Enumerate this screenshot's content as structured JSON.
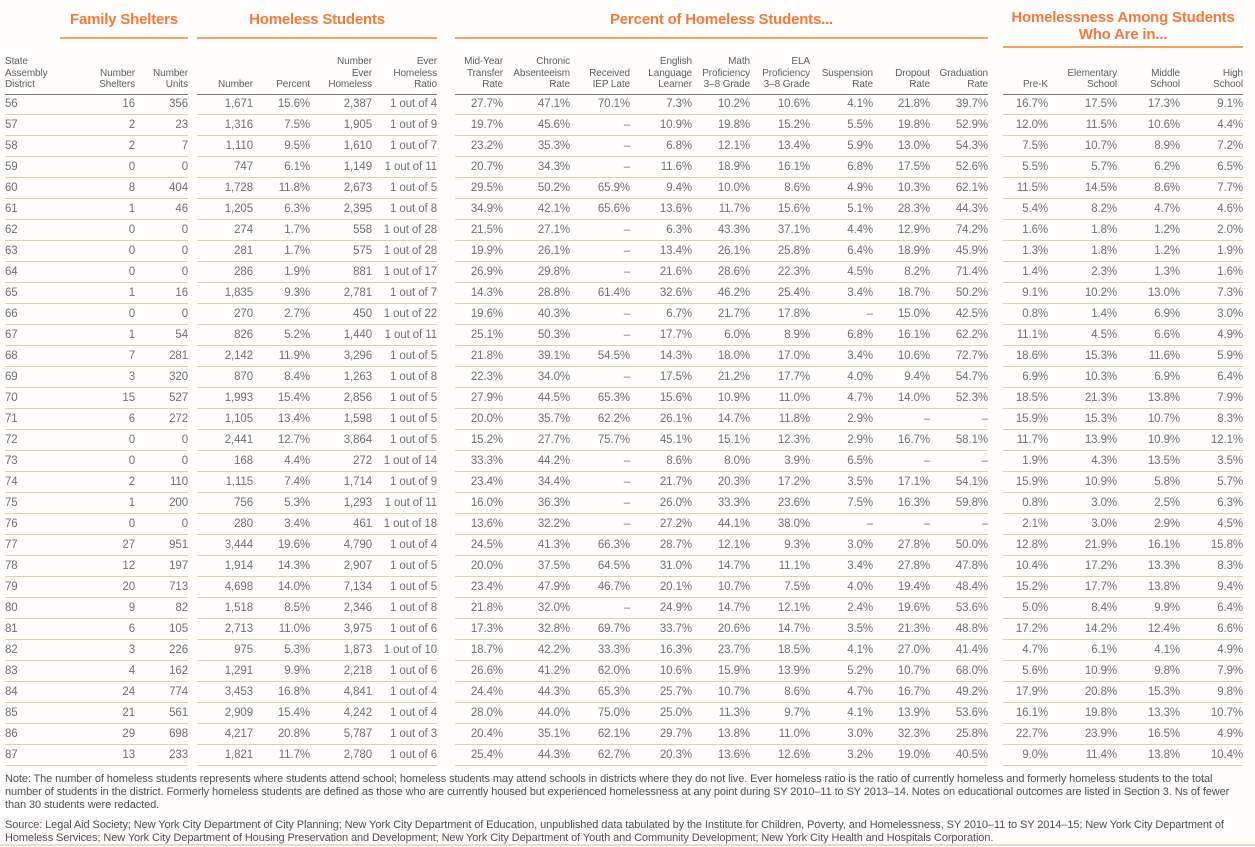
{
  "table": {
    "group_titles": [
      "Family Shelters",
      "Homeless Students",
      "Percent of Homeless Students...",
      "Homelessness Among Students\nWho Are in..."
    ],
    "columns": [
      "State\nAssembly\nDistrict",
      "Number\nShelters",
      "Number\nUnits",
      "Number",
      "Percent",
      "Number\nEver\nHomeless",
      "Ever\nHomeless\nRatio",
      "Mid-Year\nTransfer\nRate",
      "Chronic\nAbsenteeism\nRate",
      "Received\nIEP Late",
      "English\nLanguage\nLearner",
      "Math\nProficiency\n3–8 Grade",
      "ELA\nProficiency\n3–8 Grade",
      "Suspension\nRate",
      "Dropout\nRate",
      "Graduation\nRate",
      "Pre-K",
      "Elementary\nSchool",
      "Middle\nSchool",
      "High\nSchool"
    ],
    "rows": [
      [
        "56",
        "16",
        "356",
        "1,671",
        "15.6%",
        "2,387",
        "1 out of 4",
        "27.7%",
        "47.1%",
        "70.1%",
        "7.3%",
        "10.2%",
        "10.6%",
        "4.1%",
        "21.8%",
        "39.7%",
        "16.7%",
        "17.5%",
        "17.3%",
        "9.1%"
      ],
      [
        "57",
        "2",
        "23",
        "1,316",
        "7.5%",
        "1,905",
        "1 out of 9",
        "19.7%",
        "45.6%",
        "–",
        "10.9%",
        "19.8%",
        "15.2%",
        "5.5%",
        "19.8%",
        "52.9%",
        "12.0%",
        "11.5%",
        "10.6%",
        "4.4%"
      ],
      [
        "58",
        "2",
        "7",
        "1,110",
        "9.5%",
        "1,610",
        "1 out of 7",
        "23.2%",
        "35.3%",
        "–",
        "6.8%",
        "12.1%",
        "13.4%",
        "5.9%",
        "13.0%",
        "54.3%",
        "7.5%",
        "10.7%",
        "8.9%",
        "7.2%"
      ],
      [
        "59",
        "0",
        "0",
        "747",
        "6.1%",
        "1,149",
        "1 out of 11",
        "20.7%",
        "34.3%",
        "–",
        "11.6%",
        "18.9%",
        "16.1%",
        "6.8%",
        "17.5%",
        "52.6%",
        "5.5%",
        "5.7%",
        "6.2%",
        "6.5%"
      ],
      [
        "60",
        "8",
        "404",
        "1,728",
        "11.8%",
        "2,673",
        "1 out of 5",
        "29.5%",
        "50.2%",
        "65.9%",
        "9.4%",
        "10.0%",
        "8.6%",
        "4.9%",
        "10.3%",
        "62.1%",
        "11.5%",
        "14.5%",
        "8.6%",
        "7.7%"
      ],
      [
        "61",
        "1",
        "46",
        "1,205",
        "6.3%",
        "2,395",
        "1 out of 8",
        "34.9%",
        "42.1%",
        "65.6%",
        "13.6%",
        "11.7%",
        "15.6%",
        "5.1%",
        "28.3%",
        "44.3%",
        "5.4%",
        "8.2%",
        "4.7%",
        "4.6%"
      ],
      [
        "62",
        "0",
        "0",
        "274",
        "1.7%",
        "558",
        "1 out of 28",
        "21.5%",
        "27.1%",
        "–",
        "6.3%",
        "43.3%",
        "37.1%",
        "4.4%",
        "12.9%",
        "74.2%",
        "1.6%",
        "1.8%",
        "1.2%",
        "2.0%"
      ],
      [
        "63",
        "0",
        "0",
        "281",
        "1.7%",
        "575",
        "1 out of 28",
        "19.9%",
        "26.1%",
        "–",
        "13.4%",
        "26.1%",
        "25.8%",
        "6.4%",
        "18.9%",
        "45.9%",
        "1.3%",
        "1.8%",
        "1.2%",
        "1.9%"
      ],
      [
        "64",
        "0",
        "0",
        "286",
        "1.9%",
        "881",
        "1 out of 17",
        "26.9%",
        "29.8%",
        "–",
        "21.6%",
        "28.6%",
        "22.3%",
        "4.5%",
        "8.2%",
        "71.4%",
        "1.4%",
        "2.3%",
        "1.3%",
        "1.6%"
      ],
      [
        "65",
        "1",
        "16",
        "1,835",
        "9.3%",
        "2,781",
        "1 out of 7",
        "14.3%",
        "28.8%",
        "61.4%",
        "32.6%",
        "46.2%",
        "25.4%",
        "3.4%",
        "18.7%",
        "50.2%",
        "9.1%",
        "10.2%",
        "13.0%",
        "7.3%"
      ],
      [
        "66",
        "0",
        "0",
        "270",
        "2.7%",
        "450",
        "1 out of 22",
        "19.6%",
        "40.3%",
        "–",
        "6.7%",
        "21.7%",
        "17.8%",
        "–",
        "15.0%",
        "42.5%",
        "0.8%",
        "1.4%",
        "6.9%",
        "3.0%"
      ],
      [
        "67",
        "1",
        "54",
        "826",
        "5.2%",
        "1,440",
        "1 out of 11",
        "25.1%",
        "50.3%",
        "–",
        "17.7%",
        "6.0%",
        "8.9%",
        "6.8%",
        "16.1%",
        "62.2%",
        "11.1%",
        "4.5%",
        "6.6%",
        "4.9%"
      ],
      [
        "68",
        "7",
        "281",
        "2,142",
        "11.9%",
        "3,296",
        "1 out of 5",
        "21.8%",
        "39.1%",
        "54.5%",
        "14.3%",
        "18.0%",
        "17.0%",
        "3.4%",
        "10.6%",
        "72.7%",
        "18.6%",
        "15.3%",
        "11.6%",
        "5.9%"
      ],
      [
        "69",
        "3",
        "320",
        "870",
        "8.4%",
        "1,263",
        "1 out of 8",
        "22.3%",
        "34.0%",
        "–",
        "17.5%",
        "21.2%",
        "17.7%",
        "4.0%",
        "9.4%",
        "54.7%",
        "6.9%",
        "10.3%",
        "6.9%",
        "6.4%"
      ],
      [
        "70",
        "15",
        "527",
        "1,993",
        "15.4%",
        "2,856",
        "1 out of 5",
        "27.9%",
        "44.5%",
        "65.3%",
        "15.6%",
        "10.9%",
        "11.0%",
        "4.7%",
        "14.0%",
        "52.3%",
        "18.5%",
        "21.3%",
        "13.8%",
        "7.9%"
      ],
      [
        "71",
        "6",
        "272",
        "1,105",
        "13.4%",
        "1,598",
        "1 out of 5",
        "20.0%",
        "35.7%",
        "62.2%",
        "26.1%",
        "14.7%",
        "11.8%",
        "2.9%",
        "–",
        "–",
        "15.9%",
        "15.3%",
        "10.7%",
        "8.3%"
      ],
      [
        "72",
        "0",
        "0",
        "2,441",
        "12.7%",
        "3,864",
        "1 out of 5",
        "15.2%",
        "27.7%",
        "75.7%",
        "45.1%",
        "15.1%",
        "12.3%",
        "2.9%",
        "16.7%",
        "58.1%",
        "11.7%",
        "13.9%",
        "10.9%",
        "12.1%"
      ],
      [
        "73",
        "0",
        "0",
        "168",
        "4.4%",
        "272",
        "1 out of 14",
        "33.3%",
        "44.2%",
        "–",
        "8.6%",
        "8.0%",
        "3.9%",
        "6.5%",
        "–",
        "–",
        "1.9%",
        "4.3%",
        "13.5%",
        "3.5%"
      ],
      [
        "74",
        "2",
        "110",
        "1,115",
        "7.4%",
        "1,714",
        "1 out of 9",
        "23.4%",
        "34.4%",
        "–",
        "21.7%",
        "20.3%",
        "17.2%",
        "3.5%",
        "17.1%",
        "54.1%",
        "15.9%",
        "10.9%",
        "5.8%",
        "5.7%"
      ],
      [
        "75",
        "1",
        "200",
        "756",
        "5.3%",
        "1,293",
        "1 out of 11",
        "16.0%",
        "36.3%",
        "–",
        "26.0%",
        "33.3%",
        "23.6%",
        "7.5%",
        "16.3%",
        "59.8%",
        "0.8%",
        "3.0%",
        "2.5%",
        "6.3%"
      ],
      [
        "76",
        "0",
        "0",
        "280",
        "3.4%",
        "461",
        "1 out of 18",
        "13.6%",
        "32.2%",
        "–",
        "27.2%",
        "44.1%",
        "38.0%",
        "–",
        "–",
        "–",
        "2.1%",
        "3.0%",
        "2.9%",
        "4.5%"
      ],
      [
        "77",
        "27",
        "951",
        "3,444",
        "19.6%",
        "4,790",
        "1 out of 4",
        "24.5%",
        "41.3%",
        "66.3%",
        "28.7%",
        "12.1%",
        "9.3%",
        "3.0%",
        "27.8%",
        "50.0%",
        "12.8%",
        "21.9%",
        "16.1%",
        "15.8%"
      ],
      [
        "78",
        "12",
        "197",
        "1,914",
        "14.3%",
        "2,907",
        "1 out of 5",
        "20.0%",
        "37.5%",
        "64.5%",
        "31.0%",
        "14.7%",
        "11.1%",
        "3.4%",
        "27.8%",
        "47.8%",
        "10.4%",
        "17.2%",
        "13.3%",
        "8.3%"
      ],
      [
        "79",
        "20",
        "713",
        "4,698",
        "14.0%",
        "7,134",
        "1 out of 5",
        "23.4%",
        "47.9%",
        "46.7%",
        "20.1%",
        "10.7%",
        "7.5%",
        "4.0%",
        "19.4%",
        "48.4%",
        "15.2%",
        "17.7%",
        "13.8%",
        "9.4%"
      ],
      [
        "80",
        "9",
        "82",
        "1,518",
        "8.5%",
        "2,346",
        "1 out of 8",
        "21.8%",
        "32.0%",
        "–",
        "24.9%",
        "14.7%",
        "12.1%",
        "2.4%",
        "19.6%",
        "53.6%",
        "5.0%",
        "8.4%",
        "9.9%",
        "6.4%"
      ],
      [
        "81",
        "6",
        "105",
        "2,713",
        "11.0%",
        "3,975",
        "1 out of 6",
        "17.3%",
        "32.8%",
        "69.7%",
        "33.7%",
        "20.6%",
        "14.7%",
        "3.5%",
        "21.3%",
        "48.8%",
        "17.2%",
        "14.2%",
        "12.4%",
        "6.6%"
      ],
      [
        "82",
        "3",
        "226",
        "975",
        "5.3%",
        "1,873",
        "1 out of 10",
        "18.7%",
        "42.2%",
        "33.3%",
        "16.3%",
        "23.7%",
        "18.5%",
        "4.1%",
        "27.0%",
        "41.4%",
        "4.7%",
        "6.1%",
        "4.1%",
        "4.9%"
      ],
      [
        "83",
        "4",
        "162",
        "1,291",
        "9.9%",
        "2,218",
        "1 out of 6",
        "26.6%",
        "41.2%",
        "62.0%",
        "10.6%",
        "15.9%",
        "13.9%",
        "5.2%",
        "10.7%",
        "68.0%",
        "5.6%",
        "10.9%",
        "9.8%",
        "7.9%"
      ],
      [
        "84",
        "24",
        "774",
        "3,453",
        "16.8%",
        "4,841",
        "1 out of 4",
        "24.4%",
        "44.3%",
        "65.3%",
        "25.7%",
        "10.7%",
        "8.6%",
        "4.7%",
        "16.7%",
        "49.2%",
        "17.9%",
        "20.8%",
        "15.3%",
        "9.8%"
      ],
      [
        "85",
        "21",
        "561",
        "2,909",
        "15.4%",
        "4,242",
        "1 out of 4",
        "28.0%",
        "44.0%",
        "75.0%",
        "25.0%",
        "11.3%",
        "9.7%",
        "4.1%",
        "13.9%",
        "53.6%",
        "16.1%",
        "19.8%",
        "13.3%",
        "10.7%"
      ],
      [
        "86",
        "29",
        "698",
        "4,217",
        "20.8%",
        "5,787",
        "1 out of 3",
        "20.4%",
        "35.1%",
        "62.1%",
        "29.7%",
        "13.8%",
        "11.0%",
        "3.0%",
        "32.3%",
        "25.8%",
        "22.7%",
        "23.9%",
        "16.5%",
        "4.9%"
      ],
      [
        "87",
        "13",
        "233",
        "1,821",
        "11.7%",
        "2,780",
        "1 out of 6",
        "25.4%",
        "44.3%",
        "62.7%",
        "20.3%",
        "13.6%",
        "12.6%",
        "3.2%",
        "19.0%",
        "40.5%",
        "9.0%",
        "11.4%",
        "13.8%",
        "10.4%"
      ]
    ]
  },
  "footer": {
    "note": "Note: The number of homeless students represents where students attend school; homeless students may attend schools in districts where they do not live. Ever homeless ratio is the ratio of currently homeless and formerly homeless students to the total number of students in the district. Formerly homeless students are defined as those who are currently housed but experienced homelessness at any point during SY 2010–11 to SY 2013–14. Notes on educational outcomes are listed in Section 3. Ns of fewer than 30 students were redacted.",
    "source": "Source: Legal Aid Society; New York City Department of City Planning; New York City Department of Education, unpublished data tabulated by the Institute for Children, Poverty, and Homelessness, SY 2010–11 to SY 2014–15; New York City Department of Homeless Services; New York City Department of Housing Preservation and Development; New York City Department of Youth and Community Development; New York City Health and Hospitals Corporation."
  },
  "colors": {
    "accent_orange": "#f4793e",
    "rule_orange": "#f1a368",
    "header_rule": "#7b7b72",
    "row_rule": "#dbd4ab",
    "text_gray": "#6e7072"
  }
}
